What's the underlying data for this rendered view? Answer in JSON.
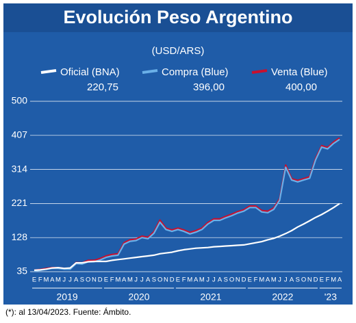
{
  "chart_data": {
    "type": "line",
    "title": "Evolución Peso Argentino",
    "subtitle": "(USD/ARS)",
    "footnote": "(*): al 13/04/2023. Fuente: Ámbito.",
    "categories": [
      "E",
      "F",
      "M",
      "A",
      "M",
      "J",
      "J",
      "A",
      "S",
      "O",
      "N",
      "D",
      "E",
      "F",
      "M",
      "A",
      "M",
      "J",
      "J",
      "A",
      "S",
      "O",
      "N",
      "D",
      "E",
      "F",
      "M",
      "A",
      "M",
      "J",
      "J",
      "A",
      "S",
      "O",
      "N",
      "D",
      "E",
      "F",
      "M",
      "A",
      "M",
      "J",
      "J",
      "A",
      "S",
      "O",
      "N",
      "D",
      "E",
      "F",
      "M",
      "A"
    ],
    "year_labels": [
      "2019",
      "2020",
      "2021",
      "2022",
      "'23"
    ],
    "ylim": [
      35,
      500
    ],
    "yticks": [
      35,
      128,
      221,
      314,
      407,
      500
    ],
    "grid": true,
    "series": [
      {
        "name": "Venta (Blue)",
        "color": "#c8102e",
        "legend_value": "400,00",
        "values": [
          39,
          41,
          44,
          46,
          46,
          44,
          44,
          60,
          59,
          66,
          66,
          71,
          78,
          82,
          84,
          114,
          122,
          124,
          132,
          129,
          144,
          176,
          154,
          149,
          154,
          149,
          142,
          147,
          154,
          169,
          179,
          179,
          186,
          192,
          199,
          204,
          214,
          214,
          202,
          200,
          209,
          234,
          326,
          289,
          284,
          289,
          294,
          344,
          379,
          374,
          389,
          400
        ]
      },
      {
        "name": "Compra (Blue)",
        "color": "#6ab0e8",
        "legend_value": "396,00",
        "values": [
          37,
          39,
          42,
          44,
          44,
          42,
          42,
          57,
          56,
          62,
          62,
          67,
          74,
          78,
          80,
          110,
          118,
          120,
          128,
          125,
          140,
          170,
          150,
          145,
          150,
          145,
          138,
          143,
          150,
          165,
          175,
          175,
          182,
          188,
          195,
          200,
          210,
          210,
          198,
          196,
          205,
          230,
          320,
          285,
          280,
          285,
          290,
          340,
          375,
          370,
          385,
          396
        ]
      },
      {
        "name": "Oficial (BNA)",
        "color": "#ffffff",
        "legend_value": "220,75",
        "values": [
          39,
          40,
          42,
          45,
          46,
          44,
          45,
          59,
          59,
          62,
          63,
          63,
          63,
          66,
          68,
          70,
          72,
          74,
          76,
          78,
          80,
          84,
          86,
          88,
          92,
          95,
          97,
          99,
          100,
          101,
          103,
          104,
          105,
          106,
          107,
          108,
          111,
          114,
          117,
          122,
          126,
          132,
          139,
          147,
          157,
          165,
          174,
          183,
          191,
          200,
          210,
          220.75
        ]
      }
    ]
  }
}
